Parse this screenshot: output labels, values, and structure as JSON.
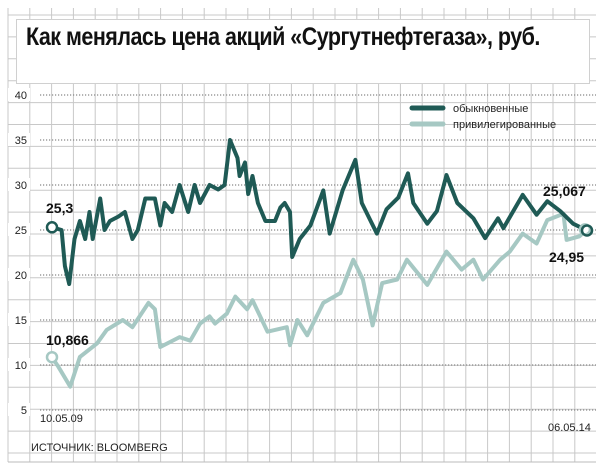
{
  "title": "Как менялась цена акций «Сургутнефтегаза», руб.",
  "source": "ИСТОЧНИК: BLOOMBERG",
  "colors": {
    "common": "#1f5a55",
    "preferred": "#a6c8c3",
    "grid": "#c8c8c8"
  },
  "chart_data": {
    "type": "line",
    "title": "Как менялась цена акций «Сургутнефтегаза», руб.",
    "xlabel": "",
    "ylabel": "руб.",
    "ylim": [
      5,
      40
    ],
    "xlim": [
      2009.36,
      2014.35
    ],
    "yticks": [
      40,
      35,
      30,
      25,
      20,
      15,
      10,
      5
    ],
    "xtick_labels": {
      "start": "10.05.09",
      "end": "06.05.14"
    },
    "grid": true,
    "legend_position": "top-right",
    "series": [
      {
        "name": "обыкновенные",
        "color": "#1f5a55",
        "start_label": "25,3",
        "end_label": "24,95",
        "x": [
          2009.36,
          2009.45,
          2009.48,
          2009.52,
          2009.57,
          2009.62,
          2009.67,
          2009.71,
          2009.74,
          2009.81,
          2009.85,
          2009.9,
          2009.98,
          2010.04,
          2010.11,
          2010.16,
          2010.23,
          2010.32,
          2010.37,
          2010.41,
          2010.48,
          2010.55,
          2010.63,
          2010.69,
          2010.74,
          2010.83,
          2010.91,
          2010.97,
          2011.02,
          2011.09,
          2011.11,
          2011.16,
          2011.19,
          2011.23,
          2011.28,
          2011.35,
          2011.44,
          2011.49,
          2011.53,
          2011.58,
          2011.6,
          2011.67,
          2011.77,
          2011.89,
          2011.95,
          2012.07,
          2012.19,
          2012.25,
          2012.39,
          2012.48,
          2012.59,
          2012.68,
          2012.73,
          2012.86,
          2012.95,
          2013.04,
          2013.14,
          2013.29,
          2013.4,
          2013.52,
          2013.57,
          2013.75,
          2013.88,
          2013.98,
          2014.1,
          2014.22,
          2014.35
        ],
        "y": [
          25.3,
          25,
          21,
          19,
          24,
          26,
          24,
          27,
          24,
          28.5,
          25,
          26,
          26.5,
          27,
          24,
          25,
          28.5,
          28.5,
          25.5,
          28,
          27,
          30,
          27,
          30,
          28,
          30,
          29.5,
          30,
          35,
          33,
          31,
          32.5,
          29,
          31,
          28,
          26,
          26,
          27.5,
          28,
          27,
          22,
          24,
          25.5,
          29.4,
          24.6,
          29.4,
          32.8,
          28,
          24.6,
          27.3,
          28.6,
          31.3,
          28,
          25.7,
          27.1,
          31.1,
          28,
          26.3,
          24.1,
          26.3,
          25.2,
          28.9,
          26.7,
          28.2,
          27.1,
          25.7,
          24.95
        ]
      },
      {
        "name": "привилегированные",
        "color": "#a6c8c3",
        "start_label": "10,866",
        "end_label": "25,067",
        "x": [
          2009.36,
          2009.42,
          2009.53,
          2009.62,
          2009.78,
          2009.87,
          2010.02,
          2010.11,
          2010.26,
          2010.32,
          2010.37,
          2010.55,
          2010.65,
          2010.74,
          2010.83,
          2010.88,
          2010.99,
          2011.07,
          2011.18,
          2011.23,
          2011.37,
          2011.55,
          2011.58,
          2011.65,
          2011.74,
          2011.89,
          2012.05,
          2012.17,
          2012.26,
          2012.35,
          2012.44,
          2012.58,
          2012.67,
          2012.86,
          2013.04,
          2013.18,
          2013.29,
          2013.38,
          2013.54,
          2013.63,
          2013.75,
          2013.88,
          2013.98,
          2014.13,
          2014.16,
          2014.28,
          2014.35
        ],
        "y": [
          10.866,
          9.8,
          7.6,
          10.9,
          12.4,
          13.9,
          15,
          14.2,
          16.9,
          16.2,
          12,
          13.1,
          12.7,
          14.6,
          15.4,
          14.6,
          15.7,
          17.6,
          16.2,
          17.2,
          13.7,
          14.2,
          12.2,
          15,
          13.3,
          16.9,
          18,
          21.7,
          19.5,
          14.4,
          19.1,
          19.5,
          21.7,
          18.9,
          22.6,
          20.6,
          21.7,
          19.5,
          21.7,
          22.6,
          24.6,
          23.5,
          26.1,
          26.8,
          23.9,
          24.3,
          25.067
        ]
      }
    ]
  }
}
